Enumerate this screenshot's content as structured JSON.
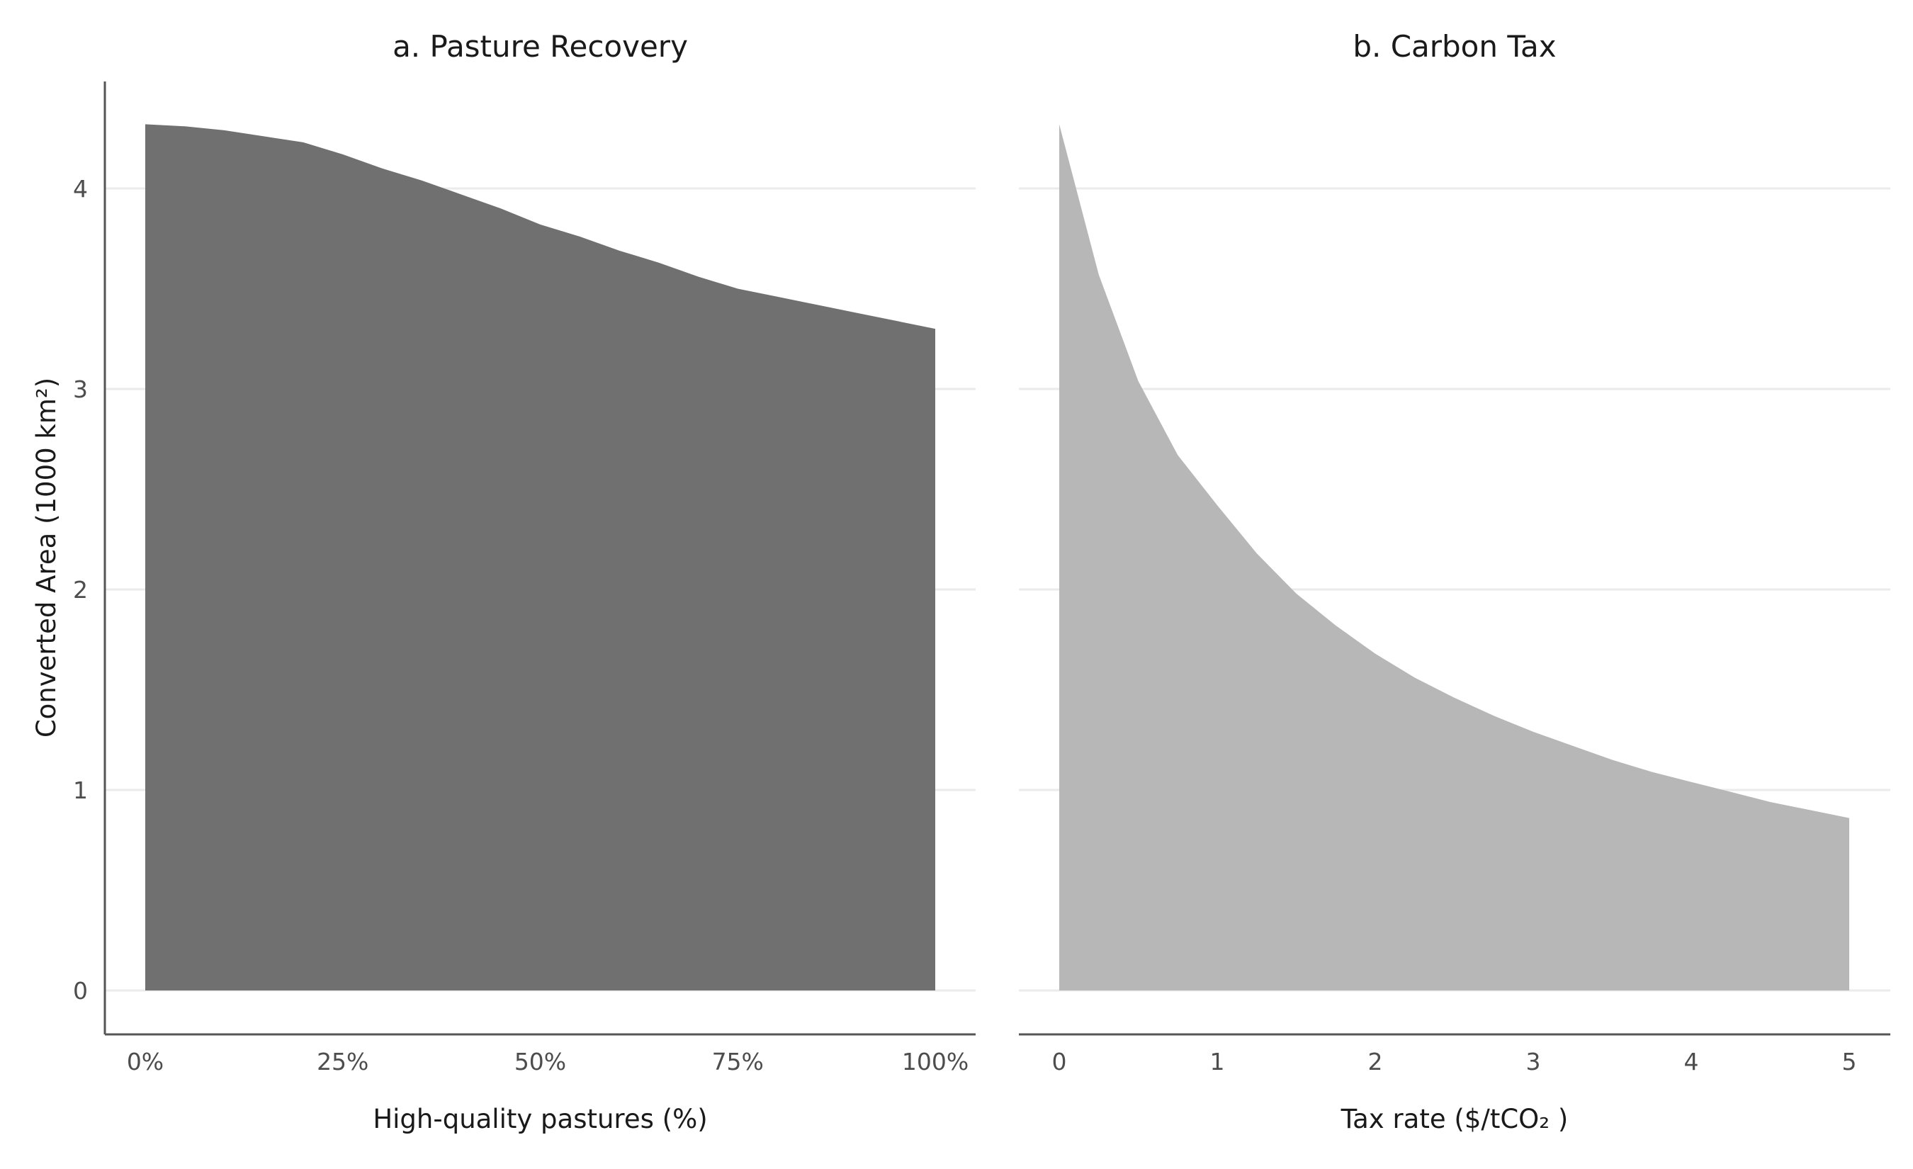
{
  "chart_data": [
    {
      "type": "area",
      "title": "a. Pasture Recovery",
      "xlabel": "High-quality pastures (%)",
      "ylabel": "Converted Area (1000 km²)",
      "xlim": [
        0,
        100
      ],
      "ylim": [
        0,
        4.5
      ],
      "x_ticks": [
        0,
        25,
        50,
        75,
        100
      ],
      "x_tick_labels": [
        "0%",
        "25%",
        "50%",
        "75%",
        "100%"
      ],
      "y_ticks": [
        0,
        1,
        2,
        3,
        4
      ],
      "y_tick_labels": [
        "0",
        "1",
        "2",
        "3",
        "4"
      ],
      "fill_color": "#707070",
      "grid": "horizontal",
      "series": [
        {
          "x": [
            0,
            5,
            10,
            15,
            20,
            25,
            30,
            35,
            40,
            45,
            50,
            55,
            60,
            65,
            70,
            75,
            80,
            85,
            90,
            95,
            100
          ],
          "y": [
            4.32,
            4.31,
            4.29,
            4.26,
            4.23,
            4.17,
            4.1,
            4.04,
            3.97,
            3.9,
            3.82,
            3.76,
            3.69,
            3.63,
            3.56,
            3.5,
            3.46,
            3.42,
            3.38,
            3.34,
            3.3
          ]
        }
      ]
    },
    {
      "type": "area",
      "title": "b. Carbon Tax",
      "xlabel": "Tax rate ($/tCO₂ )",
      "xlim": [
        0,
        5
      ],
      "ylim": [
        0,
        4.5
      ],
      "x_ticks": [
        0,
        1,
        2,
        3,
        4,
        5
      ],
      "x_tick_labels": [
        "0",
        "1",
        "2",
        "3",
        "4",
        "5"
      ],
      "fill_color": "#b7b7b7",
      "grid": "horizontal",
      "series": [
        {
          "x": [
            0,
            0.25,
            0.5,
            0.75,
            1,
            1.25,
            1.5,
            1.75,
            2,
            2.25,
            2.5,
            2.75,
            3,
            3.25,
            3.5,
            3.75,
            4,
            4.25,
            4.5,
            4.75,
            5
          ],
          "y": [
            4.32,
            3.57,
            3.04,
            2.67,
            2.42,
            2.18,
            1.98,
            1.82,
            1.68,
            1.56,
            1.46,
            1.37,
            1.29,
            1.22,
            1.15,
            1.09,
            1.04,
            0.99,
            0.94,
            0.9,
            0.86
          ]
        }
      ]
    }
  ]
}
